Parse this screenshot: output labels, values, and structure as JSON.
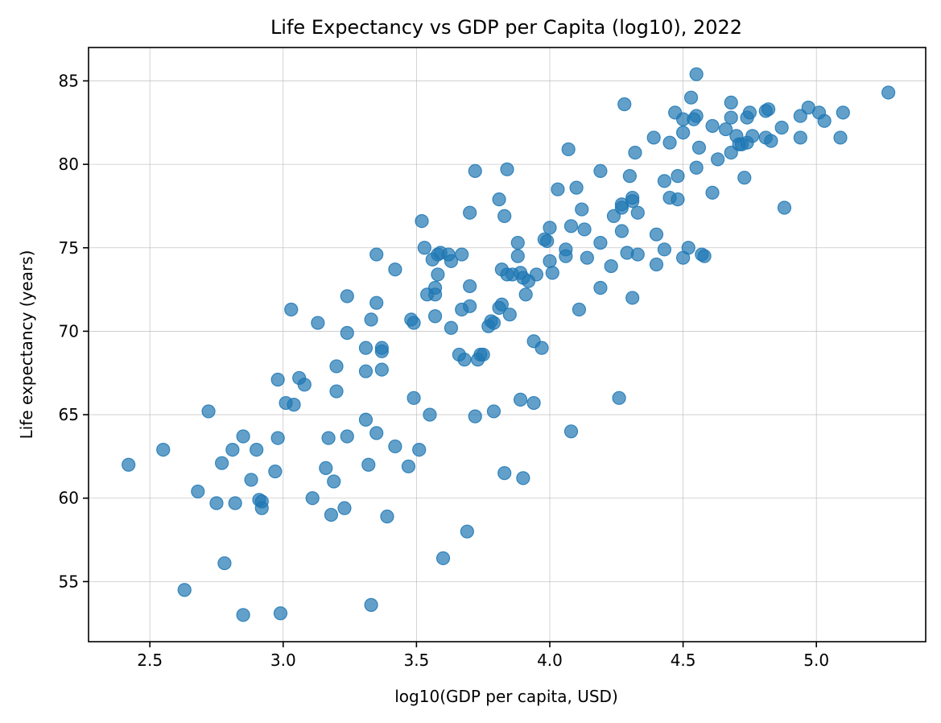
{
  "chart_data": {
    "type": "scatter",
    "title": "Life Expectancy vs GDP per Capita (log10), 2022",
    "xlabel": "log10(GDP per capita, USD)",
    "ylabel": "Life expectancy (years)",
    "xlim": [
      2.27,
      5.41
    ],
    "ylim": [
      51.4,
      87.0
    ],
    "xticks": [
      2.5,
      3.0,
      3.5,
      4.0,
      4.5,
      5.0
    ],
    "xtick_labels": [
      "2.5",
      "3.0",
      "3.5",
      "4.0",
      "4.5",
      "5.0"
    ],
    "yticks": [
      55,
      60,
      65,
      70,
      75,
      80,
      85
    ],
    "ytick_labels": [
      "55",
      "60",
      "65",
      "70",
      "75",
      "80",
      "85"
    ],
    "grid": true,
    "legend": "none",
    "marker_color": "#1f77b4",
    "marker_alpha": 0.7,
    "series": [
      {
        "points": [
          [
            2.42,
            62.0
          ],
          [
            2.55,
            62.9
          ],
          [
            2.63,
            54.5
          ],
          [
            2.68,
            60.4
          ],
          [
            2.72,
            65.2
          ],
          [
            2.75,
            59.7
          ],
          [
            2.77,
            62.1
          ],
          [
            2.78,
            56.1
          ],
          [
            2.81,
            62.9
          ],
          [
            2.82,
            59.7
          ],
          [
            2.85,
            63.7
          ],
          [
            2.85,
            53.0
          ],
          [
            2.88,
            61.1
          ],
          [
            2.9,
            62.9
          ],
          [
            2.91,
            59.9
          ],
          [
            2.92,
            59.4
          ],
          [
            2.92,
            59.8
          ],
          [
            2.97,
            61.6
          ],
          [
            2.98,
            67.1
          ],
          [
            2.98,
            63.6
          ],
          [
            2.99,
            53.1
          ],
          [
            3.01,
            65.7
          ],
          [
            3.03,
            71.3
          ],
          [
            3.04,
            65.6
          ],
          [
            3.06,
            67.2
          ],
          [
            3.08,
            66.8
          ],
          [
            3.11,
            60.0
          ],
          [
            3.13,
            70.5
          ],
          [
            3.16,
            61.8
          ],
          [
            3.17,
            63.6
          ],
          [
            3.18,
            59.0
          ],
          [
            3.19,
            61.0
          ],
          [
            3.2,
            67.9
          ],
          [
            3.2,
            66.4
          ],
          [
            3.23,
            59.4
          ],
          [
            3.24,
            72.1
          ],
          [
            3.24,
            69.9
          ],
          [
            3.24,
            63.7
          ],
          [
            3.31,
            69.0
          ],
          [
            3.31,
            67.6
          ],
          [
            3.31,
            64.7
          ],
          [
            3.32,
            62.0
          ],
          [
            3.33,
            70.7
          ],
          [
            3.33,
            53.6
          ],
          [
            3.35,
            74.6
          ],
          [
            3.35,
            71.7
          ],
          [
            3.35,
            63.9
          ],
          [
            3.37,
            69.0
          ],
          [
            3.37,
            68.8
          ],
          [
            3.37,
            67.7
          ],
          [
            3.39,
            58.9
          ],
          [
            3.42,
            73.7
          ],
          [
            3.42,
            63.1
          ],
          [
            3.47,
            61.9
          ],
          [
            3.48,
            70.7
          ],
          [
            3.49,
            70.5
          ],
          [
            3.49,
            66.0
          ],
          [
            3.51,
            62.9
          ],
          [
            3.52,
            76.6
          ],
          [
            3.53,
            75.0
          ],
          [
            3.54,
            72.2
          ],
          [
            3.55,
            65.0
          ],
          [
            3.56,
            74.3
          ],
          [
            3.57,
            72.6
          ],
          [
            3.57,
            72.2
          ],
          [
            3.57,
            70.9
          ],
          [
            3.58,
            74.6
          ],
          [
            3.58,
            73.4
          ],
          [
            3.59,
            74.7
          ],
          [
            3.6,
            56.4
          ],
          [
            3.62,
            74.6
          ],
          [
            3.63,
            74.2
          ],
          [
            3.63,
            70.2
          ],
          [
            3.66,
            68.6
          ],
          [
            3.67,
            74.6
          ],
          [
            3.67,
            71.3
          ],
          [
            3.68,
            68.3
          ],
          [
            3.69,
            58.0
          ],
          [
            3.7,
            77.1
          ],
          [
            3.7,
            72.7
          ],
          [
            3.7,
            71.5
          ],
          [
            3.72,
            79.6
          ],
          [
            3.72,
            64.9
          ],
          [
            3.73,
            68.3
          ],
          [
            3.74,
            68.6
          ],
          [
            3.75,
            68.6
          ],
          [
            3.77,
            70.3
          ],
          [
            3.78,
            70.6
          ],
          [
            3.79,
            70.5
          ],
          [
            3.79,
            65.2
          ],
          [
            3.81,
            77.9
          ],
          [
            3.81,
            71.4
          ],
          [
            3.82,
            73.7
          ],
          [
            3.82,
            71.6
          ],
          [
            3.83,
            76.9
          ],
          [
            3.83,
            61.5
          ],
          [
            3.84,
            79.7
          ],
          [
            3.84,
            73.4
          ],
          [
            3.85,
            71.0
          ],
          [
            3.86,
            73.4
          ],
          [
            3.88,
            75.3
          ],
          [
            3.88,
            74.5
          ],
          [
            3.89,
            73.5
          ],
          [
            3.89,
            65.9
          ],
          [
            3.9,
            73.2
          ],
          [
            3.9,
            61.2
          ],
          [
            3.91,
            72.2
          ],
          [
            3.92,
            73.0
          ],
          [
            3.94,
            69.4
          ],
          [
            3.94,
            65.7
          ],
          [
            3.95,
            73.4
          ],
          [
            3.97,
            69.0
          ],
          [
            3.98,
            75.5
          ],
          [
            3.99,
            75.4
          ],
          [
            4.0,
            76.2
          ],
          [
            4.0,
            74.2
          ],
          [
            4.01,
            73.5
          ],
          [
            4.03,
            78.5
          ],
          [
            4.06,
            74.9
          ],
          [
            4.06,
            74.5
          ],
          [
            4.07,
            80.9
          ],
          [
            4.08,
            76.3
          ],
          [
            4.08,
            64.0
          ],
          [
            4.1,
            78.6
          ],
          [
            4.11,
            71.3
          ],
          [
            4.12,
            77.3
          ],
          [
            4.13,
            76.1
          ],
          [
            4.14,
            74.4
          ],
          [
            4.19,
            79.6
          ],
          [
            4.19,
            75.3
          ],
          [
            4.19,
            72.6
          ],
          [
            4.23,
            73.9
          ],
          [
            4.24,
            76.9
          ],
          [
            4.26,
            66.0
          ],
          [
            4.27,
            77.6
          ],
          [
            4.27,
            77.4
          ],
          [
            4.27,
            76.0
          ],
          [
            4.28,
            83.6
          ],
          [
            4.29,
            74.7
          ],
          [
            4.3,
            79.3
          ],
          [
            4.31,
            78.0
          ],
          [
            4.31,
            77.8
          ],
          [
            4.31,
            72.0
          ],
          [
            4.32,
            80.7
          ],
          [
            4.33,
            77.1
          ],
          [
            4.33,
            74.6
          ],
          [
            4.39,
            81.6
          ],
          [
            4.4,
            75.8
          ],
          [
            4.4,
            74.0
          ],
          [
            4.43,
            79.0
          ],
          [
            4.43,
            74.9
          ],
          [
            4.45,
            81.3
          ],
          [
            4.45,
            78.0
          ],
          [
            4.47,
            83.1
          ],
          [
            4.48,
            79.3
          ],
          [
            4.48,
            77.9
          ],
          [
            4.5,
            82.7
          ],
          [
            4.5,
            81.9
          ],
          [
            4.5,
            74.4
          ],
          [
            4.52,
            75.0
          ],
          [
            4.53,
            84.0
          ],
          [
            4.54,
            82.7
          ],
          [
            4.55,
            85.4
          ],
          [
            4.55,
            82.9
          ],
          [
            4.55,
            79.8
          ],
          [
            4.56,
            81.0
          ],
          [
            4.57,
            74.6
          ],
          [
            4.58,
            74.5
          ],
          [
            4.61,
            82.3
          ],
          [
            4.61,
            78.3
          ],
          [
            4.63,
            80.3
          ],
          [
            4.66,
            82.1
          ],
          [
            4.68,
            83.7
          ],
          [
            4.68,
            82.8
          ],
          [
            4.68,
            80.7
          ],
          [
            4.7,
            81.7
          ],
          [
            4.71,
            81.2
          ],
          [
            4.72,
            81.2
          ],
          [
            4.73,
            79.2
          ],
          [
            4.74,
            82.8
          ],
          [
            4.74,
            81.3
          ],
          [
            4.75,
            83.1
          ],
          [
            4.76,
            81.7
          ],
          [
            4.81,
            83.2
          ],
          [
            4.81,
            81.6
          ],
          [
            4.82,
            83.3
          ],
          [
            4.83,
            81.4
          ],
          [
            4.87,
            82.2
          ],
          [
            4.88,
            77.4
          ],
          [
            4.94,
            82.9
          ],
          [
            4.94,
            81.6
          ],
          [
            4.97,
            83.4
          ],
          [
            5.01,
            83.1
          ],
          [
            5.03,
            82.6
          ],
          [
            5.09,
            81.6
          ],
          [
            5.1,
            83.1
          ],
          [
            5.27,
            84.3
          ]
        ]
      }
    ]
  }
}
